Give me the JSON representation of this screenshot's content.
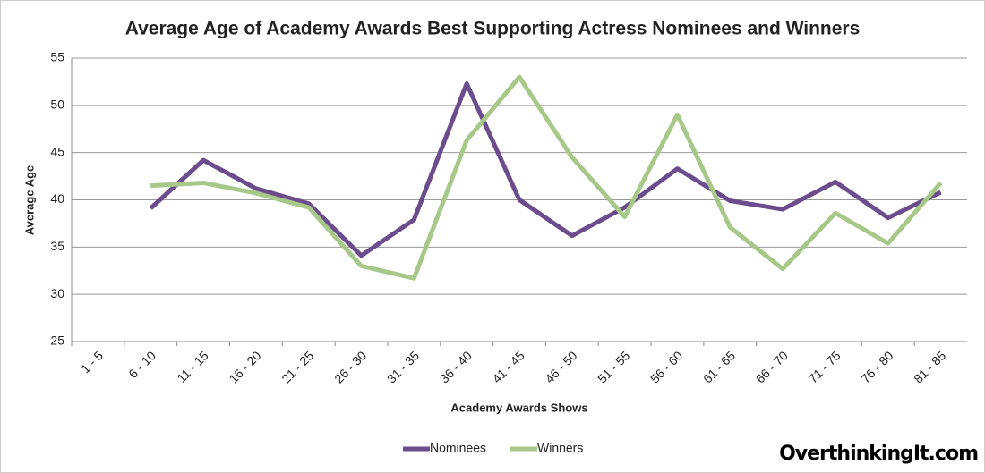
{
  "chart_data": {
    "type": "line",
    "title": "Average Age of Academy Awards Best Supporting Actress Nominees and Winners",
    "xlabel": "Academy Awards Shows",
    "ylabel": "Average Age",
    "categories": [
      "1 - 5",
      "6 - 10",
      "11 - 15",
      "16 - 20",
      "21 - 25",
      "26 - 30",
      "31 - 35",
      "36 - 40",
      "41 - 45",
      "46 - 50",
      "51 - 55",
      "56 - 60",
      "61 - 65",
      "66 - 70",
      "71 - 75",
      "76 - 80",
      "81 - 85"
    ],
    "series": [
      {
        "name": "Nominees",
        "color": "#6b4c8c",
        "values": [
          null,
          39.1,
          44.2,
          41.2,
          39.6,
          34.1,
          37.9,
          52.3,
          40.0,
          36.2,
          39.2,
          43.3,
          39.9,
          39.0,
          41.9,
          38.1,
          40.8
        ]
      },
      {
        "name": "Winners",
        "color": "#a8c88a",
        "values": [
          null,
          41.5,
          41.8,
          40.7,
          39.2,
          33.0,
          31.7,
          46.3,
          53.0,
          44.5,
          38.2,
          49.0,
          37.1,
          32.7,
          38.6,
          35.4,
          41.8
        ]
      }
    ],
    "ylim": [
      25,
      55
    ],
    "yticks": [
      25,
      30,
      35,
      40,
      45,
      50,
      55
    ],
    "grid": true,
    "legend": "bottom",
    "watermark": "OverthinkingIt.com"
  }
}
